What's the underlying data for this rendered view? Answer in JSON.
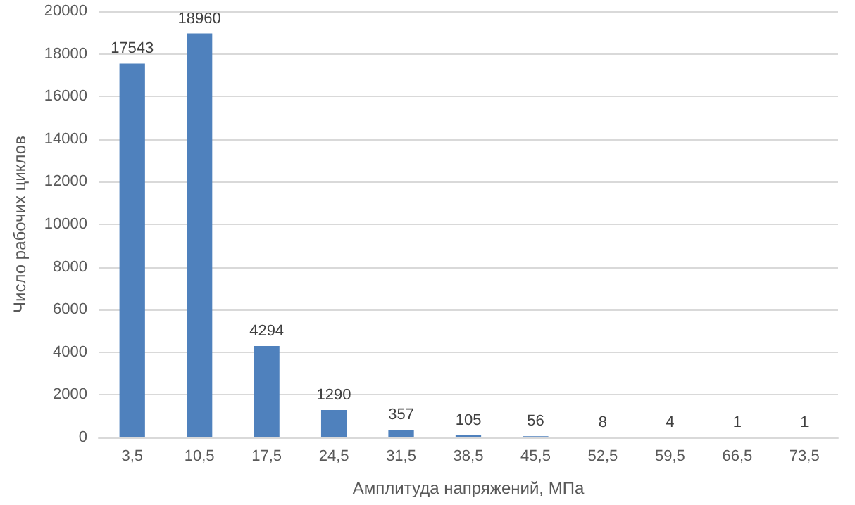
{
  "chart_data": {
    "type": "bar",
    "xlabel": "Амплитуда напряжений, МПа",
    "ylabel": "Число рабочих циклов",
    "categories": [
      "3,5",
      "10,5",
      "17,5",
      "24,5",
      "31,5",
      "38,5",
      "45,5",
      "52,5",
      "59,5",
      "66,5",
      "73,5"
    ],
    "values": [
      17543,
      18960,
      4294,
      1290,
      357,
      105,
      56,
      8,
      4,
      1,
      1
    ],
    "color": "#4f81bd",
    "ylim": [
      0,
      20000
    ],
    "yticks": [
      0,
      2000,
      4000,
      6000,
      8000,
      10000,
      12000,
      14000,
      16000,
      18000,
      20000
    ],
    "grid": "y",
    "data_labels": true
  }
}
